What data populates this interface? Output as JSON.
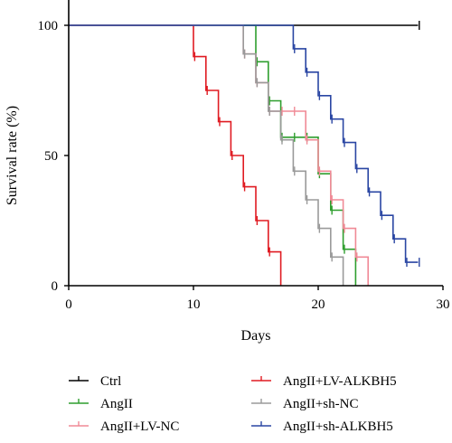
{
  "chart_data": {
    "type": "line",
    "subtype": "kaplan-meier step survival curve",
    "title": "",
    "xlabel": "Days",
    "ylabel": "Survival rate (%)",
    "xlim": [
      0,
      30
    ],
    "ylim": [
      0,
      100
    ],
    "xticks": [
      0,
      10,
      20,
      30
    ],
    "yticks": [
      0,
      50,
      100
    ],
    "grid": false,
    "legend_position": "bottom",
    "series": [
      {
        "name": "Ctrl",
        "color": "#000000",
        "steps": [
          [
            0,
            100
          ],
          [
            28,
            100
          ]
        ],
        "censor": [
          28
        ]
      },
      {
        "name": "AngII",
        "color": "#2e9e2e",
        "steps": [
          [
            0,
            100
          ],
          [
            15,
            100
          ],
          [
            15,
            86
          ],
          [
            16,
            86
          ],
          [
            16,
            71
          ],
          [
            17,
            71
          ],
          [
            17,
            57
          ],
          [
            20,
            57
          ],
          [
            20,
            43
          ],
          [
            21,
            43
          ],
          [
            21,
            29
          ],
          [
            22,
            29
          ],
          [
            22,
            14
          ],
          [
            23,
            14
          ],
          [
            23,
            0
          ]
        ],
        "censor": [
          15,
          16,
          17,
          18,
          19,
          20,
          21,
          22
        ]
      },
      {
        "name": "AngII+LV-NC",
        "color": "#f08a96",
        "steps": [
          [
            0,
            100
          ],
          [
            14,
            100
          ],
          [
            14,
            89
          ],
          [
            15,
            89
          ],
          [
            15,
            78
          ],
          [
            16,
            78
          ],
          [
            16,
            67
          ],
          [
            19,
            67
          ],
          [
            19,
            56
          ],
          [
            20,
            56
          ],
          [
            20,
            44
          ],
          [
            21,
            44
          ],
          [
            21,
            33
          ],
          [
            22,
            33
          ],
          [
            22,
            22
          ],
          [
            23,
            22
          ],
          [
            23,
            11
          ],
          [
            24,
            11
          ],
          [
            24,
            0
          ]
        ],
        "censor": [
          14,
          15,
          16,
          17,
          18,
          19,
          20,
          21,
          22,
          23
        ]
      },
      {
        "name": "AngII+LV-ALKBH5",
        "color": "#e01b22",
        "steps": [
          [
            0,
            100
          ],
          [
            10,
            100
          ],
          [
            10,
            88
          ],
          [
            11,
            88
          ],
          [
            11,
            75
          ],
          [
            12,
            75
          ],
          [
            12,
            63
          ],
          [
            13,
            63
          ],
          [
            13,
            50
          ],
          [
            14,
            50
          ],
          [
            14,
            38
          ],
          [
            15,
            38
          ],
          [
            15,
            25
          ],
          [
            16,
            25
          ],
          [
            16,
            13
          ],
          [
            17,
            13
          ],
          [
            17,
            0
          ]
        ],
        "censor": [
          10,
          11,
          12,
          13,
          14,
          15,
          16
        ]
      },
      {
        "name": "AngII+sh-NC",
        "color": "#9a9a9a",
        "steps": [
          [
            0,
            100
          ],
          [
            14,
            100
          ],
          [
            14,
            89
          ],
          [
            15,
            89
          ],
          [
            15,
            78
          ],
          [
            16,
            78
          ],
          [
            16,
            67
          ],
          [
            17,
            67
          ],
          [
            17,
            56
          ],
          [
            18,
            56
          ],
          [
            18,
            44
          ],
          [
            19,
            44
          ],
          [
            19,
            33
          ],
          [
            20,
            33
          ],
          [
            20,
            22
          ],
          [
            21,
            22
          ],
          [
            21,
            11
          ],
          [
            22,
            11
          ],
          [
            22,
            0
          ]
        ],
        "censor": [
          14,
          15,
          16,
          17,
          18,
          19,
          20,
          21
        ]
      },
      {
        "name": "AngII+sh-ALKBH5",
        "color": "#2a46a3",
        "steps": [
          [
            0,
            100
          ],
          [
            18,
            100
          ],
          [
            18,
            91
          ],
          [
            19,
            91
          ],
          [
            19,
            82
          ],
          [
            20,
            82
          ],
          [
            20,
            73
          ],
          [
            21,
            73
          ],
          [
            21,
            64
          ],
          [
            22,
            64
          ],
          [
            22,
            55
          ],
          [
            23,
            55
          ],
          [
            23,
            45
          ],
          [
            24,
            45
          ],
          [
            24,
            36
          ],
          [
            25,
            36
          ],
          [
            25,
            27
          ],
          [
            26,
            27
          ],
          [
            26,
            18
          ],
          [
            27,
            18
          ],
          [
            27,
            9
          ],
          [
            28,
            9
          ]
        ],
        "censor": [
          18,
          19,
          20,
          21,
          22,
          23,
          24,
          25,
          26,
          27,
          28
        ]
      }
    ]
  }
}
